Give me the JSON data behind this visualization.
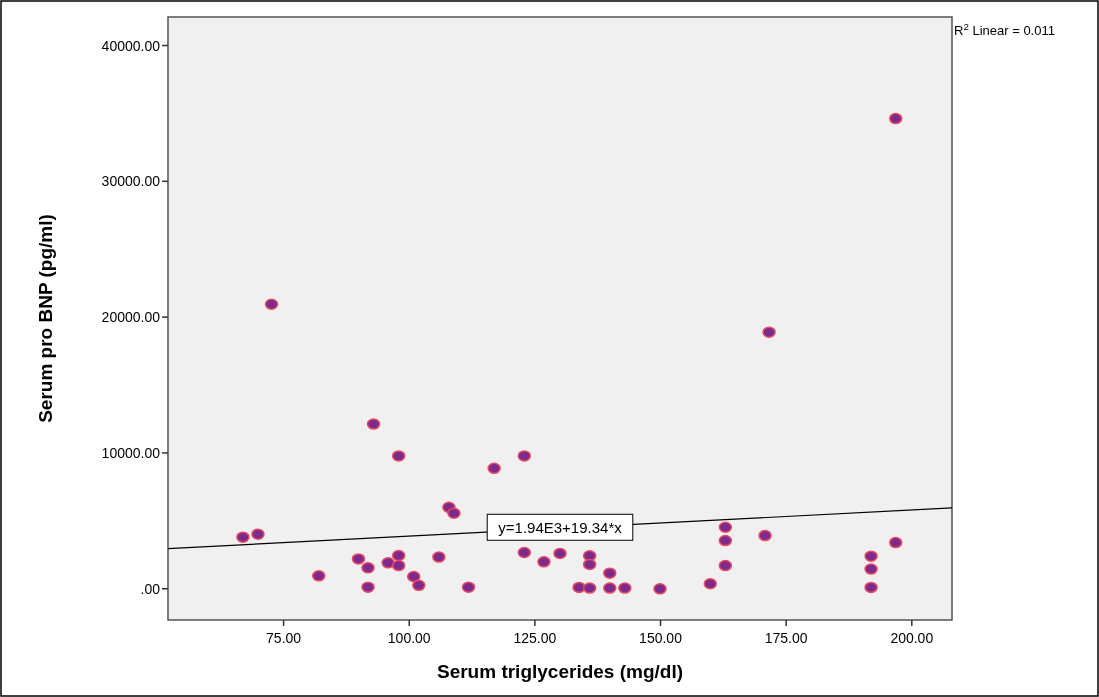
{
  "chart_data": {
    "type": "scatter",
    "xlabel": "Serum triglycerides (mg/dl)",
    "ylabel": "Serum pro BNP (pg/ml)",
    "xlim": [
      52,
      208
    ],
    "ylim": [
      -2300,
      42100
    ],
    "xticks": [
      {
        "value": 75,
        "label": "75.00"
      },
      {
        "value": 100,
        "label": "100.00"
      },
      {
        "value": 125,
        "label": "125.00"
      },
      {
        "value": 150,
        "label": "150.00"
      },
      {
        "value": 175,
        "label": "175.00"
      },
      {
        "value": 200,
        "label": "200.00"
      }
    ],
    "yticks": [
      {
        "value": 0,
        "label": ".00"
      },
      {
        "value": 10000,
        "label": "10000.00"
      },
      {
        "value": 20000,
        "label": "20000.00"
      },
      {
        "value": 30000,
        "label": "30000.00"
      },
      {
        "value": 40000,
        "label": "40000.00"
      }
    ],
    "grid": false,
    "series": [
      {
        "type": "scatter",
        "color": "#7e2a8c",
        "marker": "circle",
        "x": [
          92.9,
          97.9,
          116.9,
          122.9,
          107.9,
          108.9,
          66.9,
          69.9,
          89.9,
          91.8,
          91.8,
          82,
          95.8,
          97.9,
          97.9,
          100.9,
          101.9,
          105.9,
          111.8,
          122.9,
          126.8,
          130,
          135.9,
          135.9,
          133.8,
          135.9,
          139.9,
          139.9,
          142.9,
          149.9,
          159.9,
          162.9,
          162.9,
          162.9,
          170.8,
          191.9,
          191.9,
          191.9,
          196.8,
          72.6,
          171.6,
          196.8
        ],
        "values": [
          12130,
          9780,
          8870,
          9780,
          6000,
          5560,
          3800,
          4020,
          2200,
          1540,
          120,
          950,
          1910,
          2450,
          1710,
          900,
          250,
          2330,
          120,
          2670,
          1980,
          2600,
          2430,
          1790,
          100,
          50,
          1150,
          50,
          50,
          0,
          370,
          4530,
          3550,
          1710,
          3920,
          2400,
          1450,
          100,
          3400,
          20950,
          18890,
          34620
        ]
      },
      {
        "type": "line",
        "color": "#000000",
        "line_style": "solid",
        "marker": "none",
        "x": [
          52,
          208
        ],
        "values": [
          2950,
          5960
        ]
      }
    ],
    "annotations": [
      {
        "text": "y=1.94E3+19.34*x",
        "x": 130,
        "y": 4454
      },
      "R$^{2}$ Linear = 0.011"
    ]
  }
}
